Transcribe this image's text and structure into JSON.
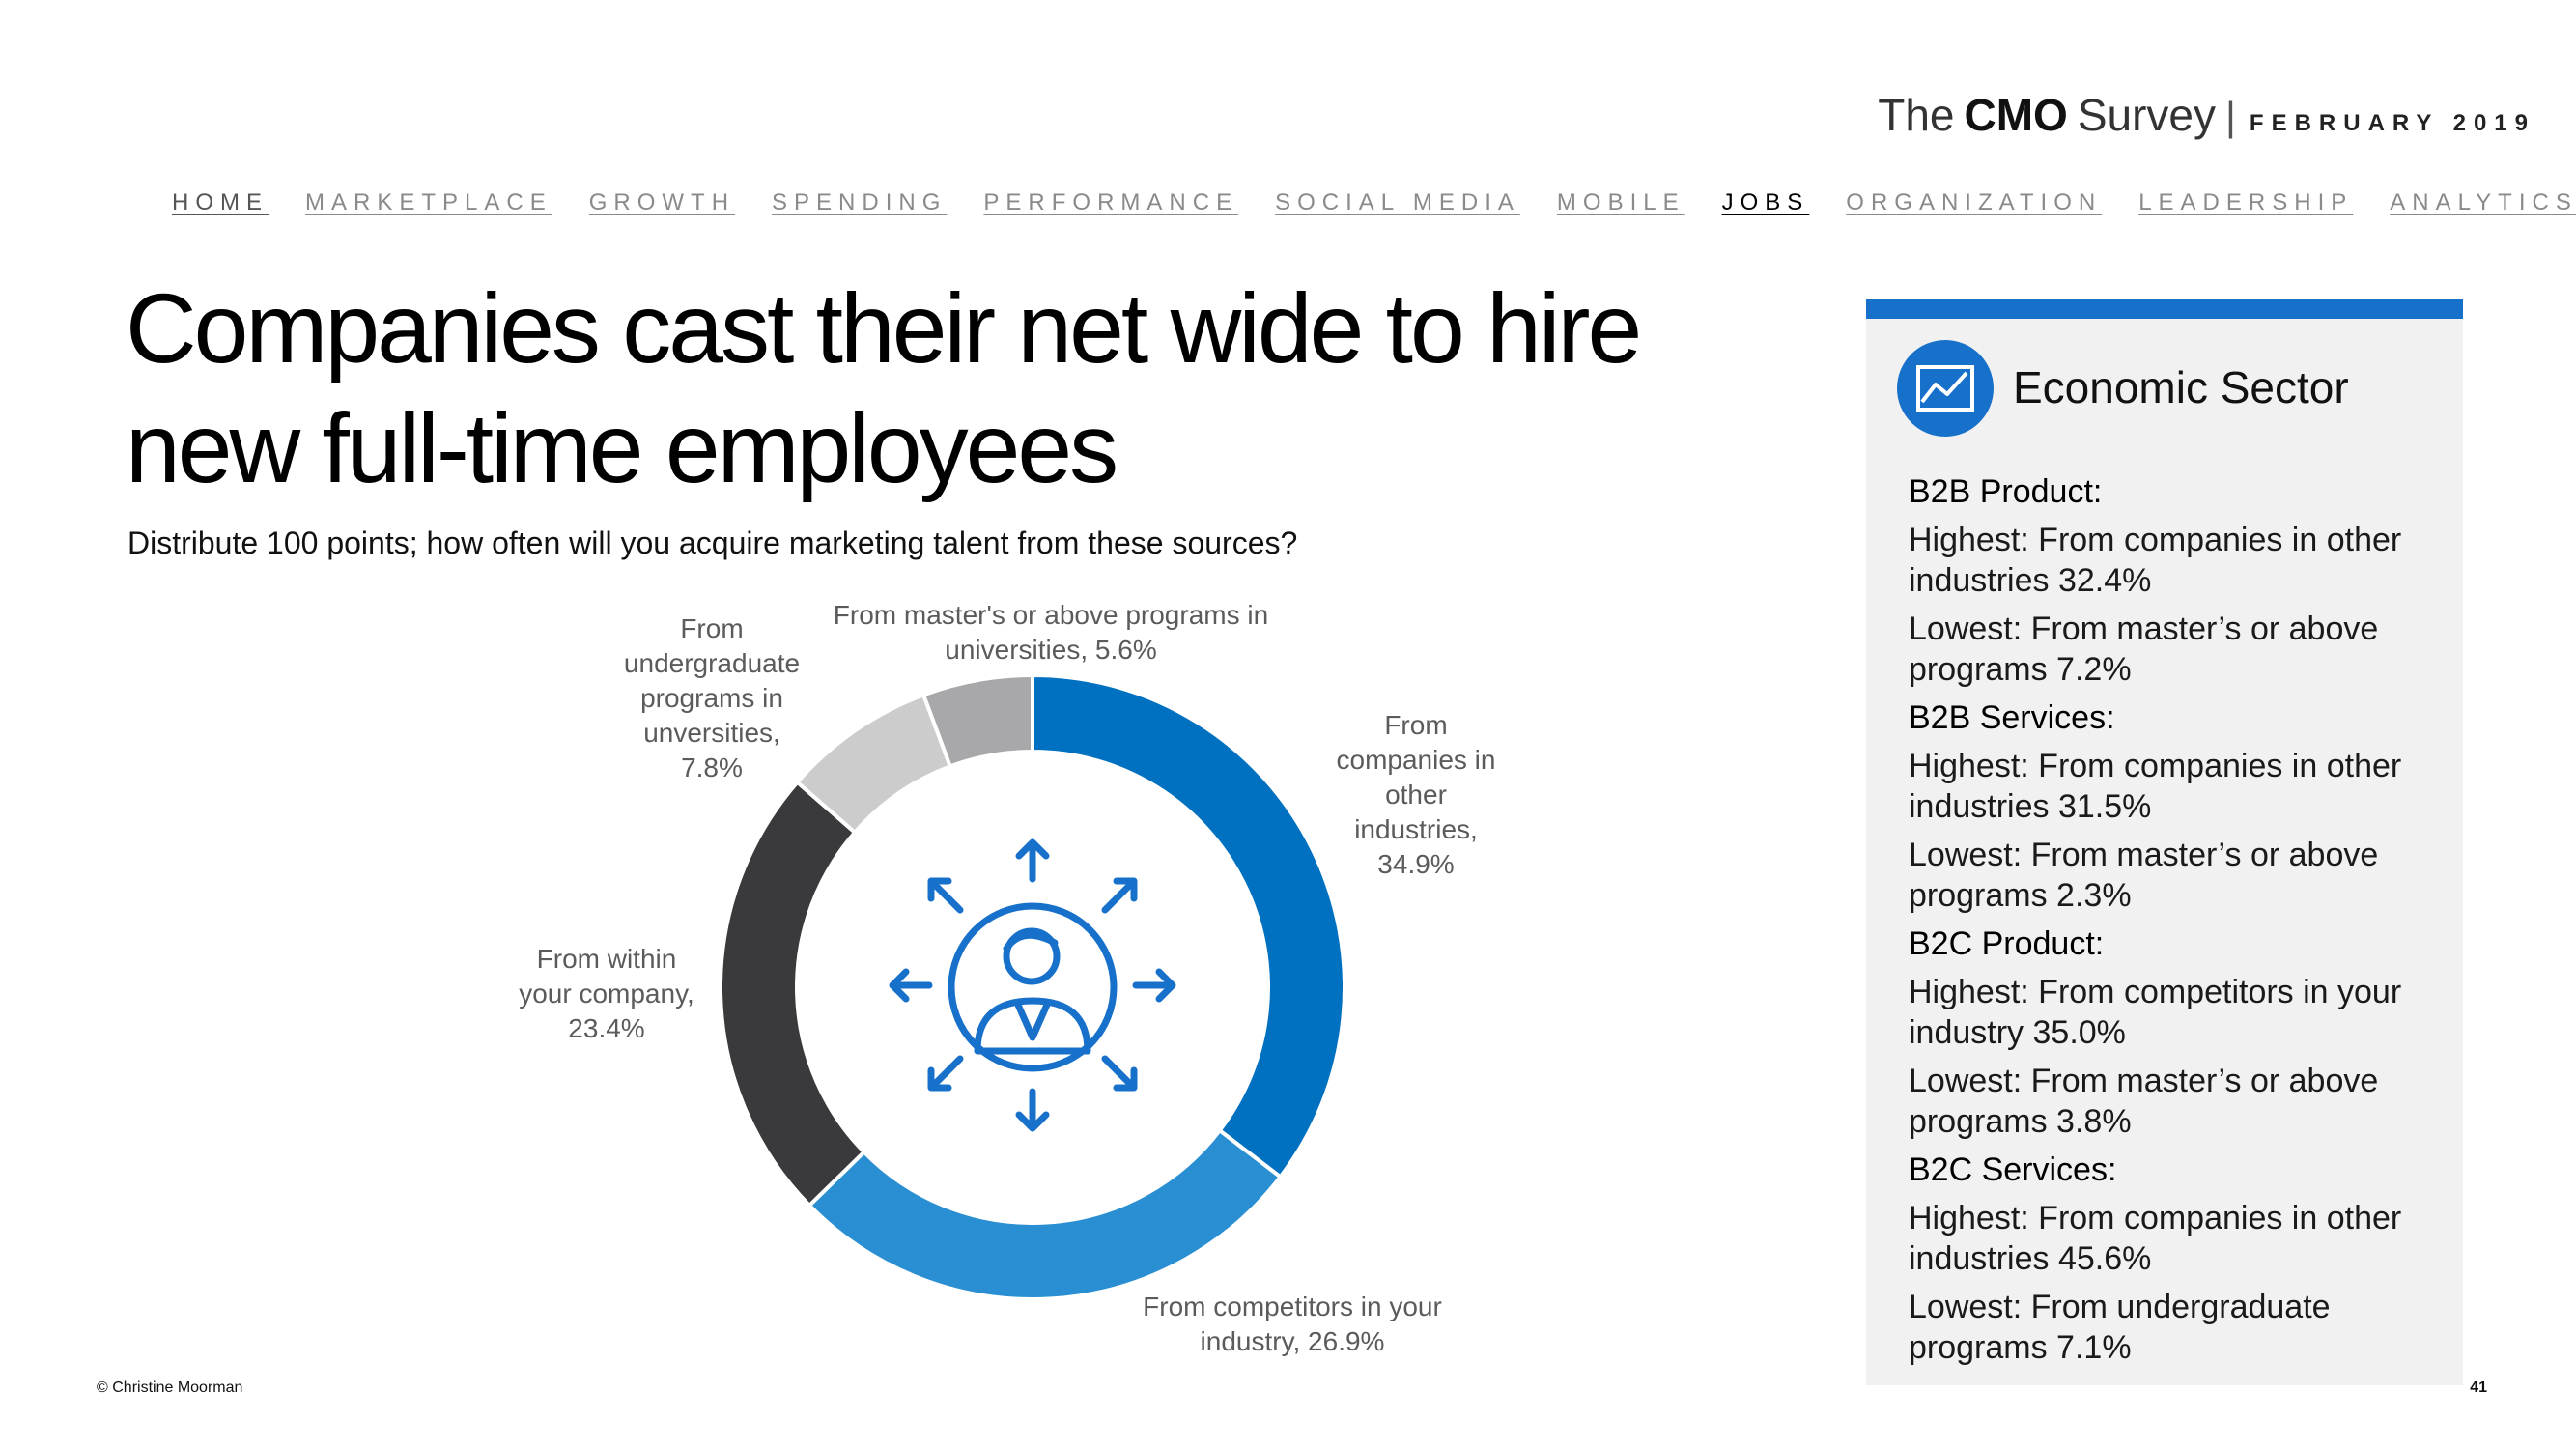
{
  "brand": {
    "the": "The",
    "cmo": "CMO",
    "survey": "Survey",
    "separator": "|",
    "date": "FEBRUARY 2019"
  },
  "nav": [
    "HOME",
    "MARKETPLACE",
    "GROWTH",
    "SPENDING",
    "PERFORMANCE",
    "SOCIAL MEDIA",
    "MOBILE",
    "JOBS",
    "ORGANIZATION",
    "LEADERSHIP",
    "ANALYTICS"
  ],
  "nav_active": "JOBS",
  "title": "Companies cast their net wide to hire new full-time employees",
  "subtitle": "Distribute 100 points; how often will you acquire marketing talent from these sources?",
  "colors": {
    "accent": "#1770c9",
    "panel_bg": "#f1f1f2"
  },
  "center_icon": "person-arrows-outward-icon",
  "chart_data": {
    "type": "pie",
    "variant": "donut",
    "title": "",
    "slices": [
      {
        "label": "From companies in other industries",
        "value": 34.9,
        "display": "From companies in other industries, 34.9%",
        "color": "#0070c0"
      },
      {
        "label": "From competitors in your industry",
        "value": 26.9,
        "display": "From competitors in your industry, 26.9%",
        "color": "#2a8fd2"
      },
      {
        "label": "From within your company",
        "value": 23.4,
        "display": "From within your company, 23.4%",
        "color": "#3a3a3c"
      },
      {
        "label": "From undergraduate programs in unversities",
        "value": 7.8,
        "display": "From undergraduate programs in unversities, 7.8%",
        "color": "#cccccc"
      },
      {
        "label": "From master's or above programs in universities",
        "value": 5.6,
        "display": "From master's or above programs in universities, 5.6%",
        "color": "#a8a8aa"
      }
    ]
  },
  "panel": {
    "title": "Economic Sector",
    "icon": "line-chart-icon",
    "sectors": [
      {
        "label": "B2B Product:",
        "highest": "Highest: From companies in other industries 32.4%",
        "lowest": "Lowest: From master’s or above programs 7.2%"
      },
      {
        "label": "B2B Services:",
        "highest": "Highest: From companies in other industries 31.5%",
        "lowest": "Lowest: From master’s or above programs 2.3%"
      },
      {
        "label": "B2C Product:",
        "highest": "Highest: From competitors in your industry 35.0%",
        "lowest": "Lowest: From master’s or above programs 3.8%"
      },
      {
        "label": "B2C Services:",
        "highest": "Highest: From companies in other industries 45.6%",
        "lowest": "Lowest: From undergraduate programs 7.1%"
      }
    ]
  },
  "footer": {
    "copyright": "© Christine Moorman",
    "page": "41"
  }
}
